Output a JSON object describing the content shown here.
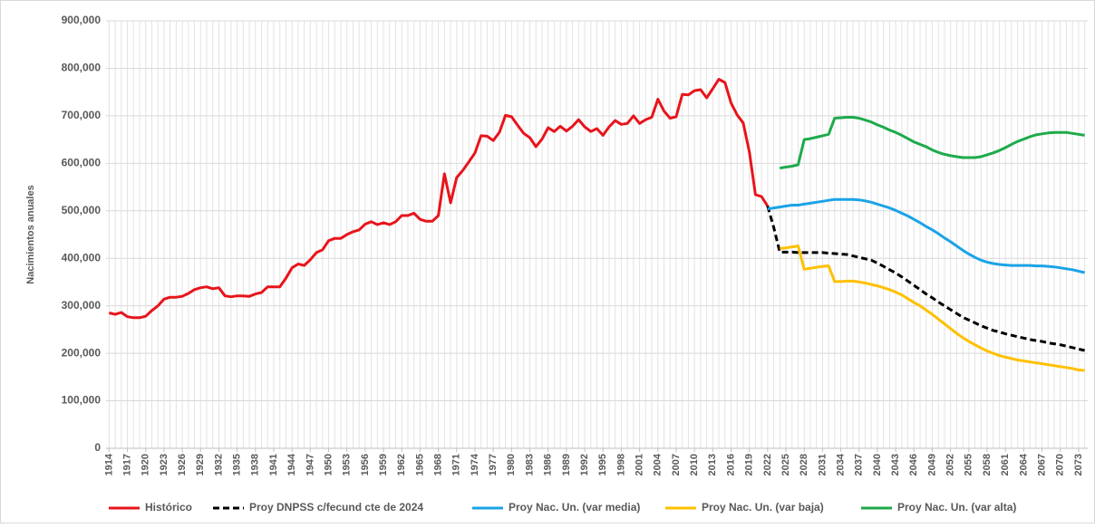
{
  "chart_data": {
    "type": "line",
    "y_label": "Nacimientos anuales",
    "xlim": [
      1913.5,
      2074.5
    ],
    "ylim": [
      0,
      900000
    ],
    "grid": true,
    "legend": "bottom",
    "yticks": [
      0,
      {
        "value": 100000,
        "label": "100,000"
      },
      {
        "value": 200000,
        "label": "200,000"
      },
      {
        "value": 300000,
        "label": "300,000"
      },
      {
        "value": 400000,
        "label": "400,000"
      },
      {
        "value": 500000,
        "label": "500,000"
      },
      {
        "value": 600000,
        "label": "600,000"
      },
      {
        "value": 700000,
        "label": "700,000"
      },
      {
        "value": 800000,
        "label": "800,000"
      },
      {
        "value": 900000,
        "label": "900,000"
      }
    ],
    "xticks": [
      1914,
      1917,
      1920,
      1923,
      1926,
      1929,
      1932,
      1935,
      1938,
      1941,
      1944,
      1947,
      1950,
      1953,
      1956,
      1959,
      1962,
      1965,
      1968,
      1971,
      1974,
      1977,
      1980,
      1983,
      1986,
      1989,
      1992,
      1995,
      1998,
      2001,
      2004,
      2007,
      2010,
      2013,
      2016,
      2019,
      2022,
      2025,
      2028,
      2031,
      2034,
      2037,
      2040,
      2043,
      2046,
      2049,
      2052,
      2055,
      2058,
      2061,
      2064,
      2067,
      2070,
      2073
    ],
    "x": [
      1914,
      1915,
      1916,
      1917,
      1918,
      1919,
      1920,
      1921,
      1922,
      1923,
      1924,
      1925,
      1926,
      1927,
      1928,
      1929,
      1930,
      1931,
      1932,
      1933,
      1934,
      1935,
      1936,
      1937,
      1938,
      1939,
      1940,
      1941,
      1942,
      1943,
      1944,
      1945,
      1946,
      1947,
      1948,
      1949,
      1950,
      1951,
      1952,
      1953,
      1954,
      1955,
      1956,
      1957,
      1958,
      1959,
      1960,
      1961,
      1962,
      1963,
      1964,
      1965,
      1966,
      1967,
      1968,
      1969,
      1970,
      1971,
      1972,
      1973,
      1974,
      1975,
      1976,
      1977,
      1978,
      1979,
      1980,
      1981,
      1982,
      1983,
      1984,
      1985,
      1986,
      1987,
      1988,
      1989,
      1990,
      1991,
      1992,
      1993,
      1994,
      1995,
      1996,
      1997,
      1998,
      1999,
      2000,
      2001,
      2002,
      2003,
      2004,
      2005,
      2006,
      2007,
      2008,
      2009,
      2010,
      2011,
      2012,
      2013,
      2014,
      2015,
      2016,
      2017,
      2018,
      2019,
      2020,
      2021,
      2022,
      2023,
      2024,
      2025,
      2026,
      2027,
      2028,
      2029,
      2030,
      2031,
      2032,
      2033,
      2034,
      2035,
      2036,
      2037,
      2038,
      2039,
      2040,
      2041,
      2042,
      2043,
      2044,
      2045,
      2046,
      2047,
      2048,
      2049,
      2050,
      2051,
      2052,
      2053,
      2054,
      2055,
      2056,
      2057,
      2058,
      2059,
      2060,
      2061,
      2062,
      2063,
      2064,
      2065,
      2066,
      2067,
      2068,
      2069,
      2070,
      2071,
      2072,
      2073,
      2074
    ],
    "series": [
      {
        "name": "Histórico",
        "color": "#e8141b",
        "dashed": false,
        "values": [
          285000,
          282000,
          286000,
          277000,
          275000,
          275000,
          278000,
          290000,
          300000,
          314000,
          318000,
          318000,
          320000,
          326000,
          334000,
          338000,
          340000,
          336000,
          338000,
          321000,
          319000,
          321000,
          321000,
          320000,
          325000,
          328000,
          340000,
          340000,
          340000,
          358000,
          380000,
          388000,
          385000,
          397000,
          412000,
          418000,
          437000,
          442000,
          442000,
          450000,
          456000,
          460000,
          472000,
          477000,
          471000,
          475000,
          471000,
          477000,
          490000,
          490000,
          495000,
          482000,
          478000,
          478000,
          490000,
          578000,
          517000,
          570000,
          585000,
          603000,
          622000,
          658000,
          657000,
          648000,
          665000,
          701000,
          698000,
          680000,
          663000,
          654000,
          635000,
          651000,
          675000,
          667000,
          678000,
          668000,
          678000,
          692000,
          677000,
          667000,
          673000,
          659000,
          677000,
          690000,
          682000,
          684000,
          700000,
          684000,
          692000,
          697000,
          735000,
          710000,
          695000,
          698000,
          745000,
          744000,
          753000,
          755000,
          738000,
          757000,
          777000,
          770000,
          727000,
          702000,
          685000,
          624000,
          534000,
          530000,
          510000,
          null,
          null,
          null,
          null,
          null,
          null,
          null,
          null,
          null,
          null,
          null,
          null,
          null,
          null,
          null,
          null,
          null,
          null,
          null,
          null,
          null,
          null,
          null,
          null,
          null,
          null,
          null,
          null,
          null,
          null,
          null,
          null,
          null,
          null,
          null,
          null,
          null,
          null,
          null,
          null,
          null,
          null,
          null,
          null,
          null,
          null,
          null,
          null,
          null,
          null,
          null,
          null
        ]
      },
      {
        "name": "Proy DNPSS c/fecund cte de 2024",
        "color": "#000000",
        "dashed": true,
        "values": [
          null,
          null,
          null,
          null,
          null,
          null,
          null,
          null,
          null,
          null,
          null,
          null,
          null,
          null,
          null,
          null,
          null,
          null,
          null,
          null,
          null,
          null,
          null,
          null,
          null,
          null,
          null,
          null,
          null,
          null,
          null,
          null,
          null,
          null,
          null,
          null,
          null,
          null,
          null,
          null,
          null,
          null,
          null,
          null,
          null,
          null,
          null,
          null,
          null,
          null,
          null,
          null,
          null,
          null,
          null,
          null,
          null,
          null,
          null,
          null,
          null,
          null,
          null,
          null,
          null,
          null,
          null,
          null,
          null,
          null,
          null,
          null,
          null,
          null,
          null,
          null,
          null,
          null,
          null,
          null,
          null,
          null,
          null,
          null,
          null,
          null,
          null,
          null,
          null,
          null,
          null,
          null,
          null,
          null,
          null,
          null,
          null,
          null,
          null,
          null,
          null,
          null,
          null,
          null,
          null,
          null,
          null,
          null,
          510000,
          465000,
          413000,
          413000,
          413000,
          412000,
          412000,
          412000,
          412000,
          412000,
          411000,
          410000,
          409000,
          408000,
          405000,
          402000,
          399000,
          396000,
          390000,
          383000,
          376000,
          369000,
          361000,
          352000,
          343000,
          334000,
          325000,
          317000,
          308000,
          300000,
          292000,
          284000,
          276000,
          270000,
          264000,
          258000,
          253000,
          248000,
          245000,
          241000,
          238000,
          235000,
          232000,
          229000,
          227000,
          225000,
          222000,
          220000,
          218000,
          215000,
          212000,
          209000,
          206000
        ]
      },
      {
        "name": "Proy Nac. Un. (var media)",
        "color": "#1ba3e6",
        "dashed": false,
        "values": [
          null,
          null,
          null,
          null,
          null,
          null,
          null,
          null,
          null,
          null,
          null,
          null,
          null,
          null,
          null,
          null,
          null,
          null,
          null,
          null,
          null,
          null,
          null,
          null,
          null,
          null,
          null,
          null,
          null,
          null,
          null,
          null,
          null,
          null,
          null,
          null,
          null,
          null,
          null,
          null,
          null,
          null,
          null,
          null,
          null,
          null,
          null,
          null,
          null,
          null,
          null,
          null,
          null,
          null,
          null,
          null,
          null,
          null,
          null,
          null,
          null,
          null,
          null,
          null,
          null,
          null,
          null,
          null,
          null,
          null,
          null,
          null,
          null,
          null,
          null,
          null,
          null,
          null,
          null,
          null,
          null,
          null,
          null,
          null,
          null,
          null,
          null,
          null,
          null,
          null,
          null,
          null,
          null,
          null,
          null,
          null,
          null,
          null,
          null,
          null,
          null,
          null,
          null,
          null,
          null,
          null,
          null,
          null,
          504000,
          506000,
          508000,
          510000,
          512000,
          512000,
          514000,
          516000,
          518000,
          520000,
          522000,
          524000,
          524000,
          524000,
          524000,
          523000,
          521000,
          518000,
          514000,
          510000,
          506000,
          501000,
          495000,
          489000,
          482000,
          475000,
          467000,
          460000,
          452000,
          443000,
          435000,
          426000,
          417000,
          409000,
          402000,
          396000,
          392000,
          389000,
          387000,
          386000,
          385000,
          385000,
          385000,
          385000,
          384000,
          384000,
          383000,
          382000,
          380000,
          378000,
          376000,
          373000,
          370000
        ]
      },
      {
        "name": "Proy Nac. Un. (var baja)",
        "color": "#ffc000",
        "dashed": false,
        "values": [
          null,
          null,
          null,
          null,
          null,
          null,
          null,
          null,
          null,
          null,
          null,
          null,
          null,
          null,
          null,
          null,
          null,
          null,
          null,
          null,
          null,
          null,
          null,
          null,
          null,
          null,
          null,
          null,
          null,
          null,
          null,
          null,
          null,
          null,
          null,
          null,
          null,
          null,
          null,
          null,
          null,
          null,
          null,
          null,
          null,
          null,
          null,
          null,
          null,
          null,
          null,
          null,
          null,
          null,
          null,
          null,
          null,
          null,
          null,
          null,
          null,
          null,
          null,
          null,
          null,
          null,
          null,
          null,
          null,
          null,
          null,
          null,
          null,
          null,
          null,
          null,
          null,
          null,
          null,
          null,
          null,
          null,
          null,
          null,
          null,
          null,
          null,
          null,
          null,
          null,
          null,
          null,
          null,
          null,
          null,
          null,
          null,
          null,
          null,
          null,
          null,
          null,
          null,
          null,
          null,
          null,
          null,
          null,
          null,
          null,
          421000,
          422000,
          424000,
          426000,
          377000,
          379000,
          381000,
          383000,
          384000,
          351000,
          351000,
          352000,
          352000,
          350000,
          348000,
          345000,
          342000,
          338000,
          334000,
          329000,
          323000,
          315000,
          307000,
          300000,
          291000,
          282000,
          272000,
          262000,
          252000,
          242000,
          233000,
          225000,
          218000,
          211000,
          205000,
          200000,
          195000,
          192000,
          189000,
          186000,
          184000,
          182000,
          180000,
          178000,
          176000,
          174000,
          172000,
          170000,
          168000,
          165000,
          164000
        ]
      },
      {
        "name": "Proy Nac. Un. (var alta)",
        "color": "#1eaa4b",
        "dashed": false,
        "values": [
          null,
          null,
          null,
          null,
          null,
          null,
          null,
          null,
          null,
          null,
          null,
          null,
          null,
          null,
          null,
          null,
          null,
          null,
          null,
          null,
          null,
          null,
          null,
          null,
          null,
          null,
          null,
          null,
          null,
          null,
          null,
          null,
          null,
          null,
          null,
          null,
          null,
          null,
          null,
          null,
          null,
          null,
          null,
          null,
          null,
          null,
          null,
          null,
          null,
          null,
          null,
          null,
          null,
          null,
          null,
          null,
          null,
          null,
          null,
          null,
          null,
          null,
          null,
          null,
          null,
          null,
          null,
          null,
          null,
          null,
          null,
          null,
          null,
          null,
          null,
          null,
          null,
          null,
          null,
          null,
          null,
          null,
          null,
          null,
          null,
          null,
          null,
          null,
          null,
          null,
          null,
          null,
          null,
          null,
          null,
          null,
          null,
          null,
          null,
          null,
          null,
          null,
          null,
          null,
          null,
          null,
          null,
          null,
          null,
          null,
          590000,
          592000,
          594000,
          597000,
          650000,
          652000,
          655000,
          658000,
          661000,
          695000,
          696000,
          697000,
          697000,
          695000,
          691000,
          687000,
          681000,
          676000,
          670000,
          665000,
          659000,
          652000,
          645000,
          640000,
          635000,
          628000,
          623000,
          619000,
          616000,
          614000,
          612000,
          612000,
          612000,
          614000,
          618000,
          622000,
          627000,
          633000,
          640000,
          646000,
          651000,
          656000,
          660000,
          662000,
          664000,
          665000,
          665000,
          665000,
          663000,
          661000,
          659000
        ]
      }
    ]
  }
}
